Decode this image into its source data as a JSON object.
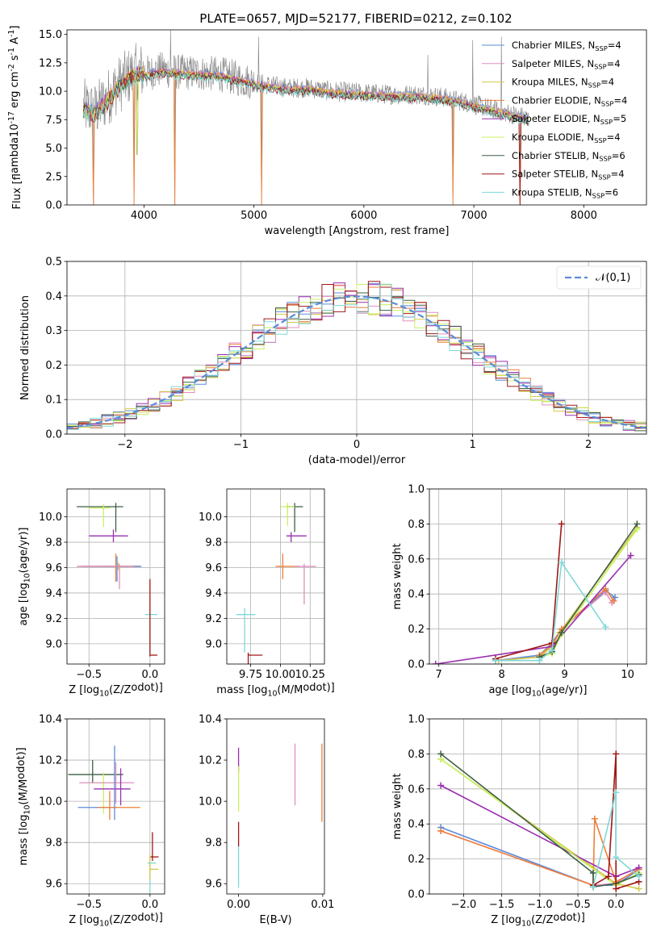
{
  "chart_data": [
    {
      "panel": "spectrum",
      "type": "line",
      "title": "PLATE=0657, MJD=52177, FIBERID=0212, z=0.102",
      "xlabel": "wavelength [Angstrom, rest frame]",
      "ylabel": "Flux [f$_\\lambda$10$^{-17}$ erg cm$^{-2}$ s$^{-1}$ A$^{-1}$]",
      "xlim": [
        3300,
        8570
      ],
      "ylim": [
        0,
        15.4
      ],
      "xticks": [
        4000,
        5000,
        6000,
        7000,
        8000
      ],
      "yticks": [
        0.0,
        2.5,
        5.0,
        7.5,
        10.0,
        12.5,
        15.0
      ],
      "grid": false,
      "legend": "top-right",
      "models": [
        {
          "name": "Chabrier MILES, N$_{SSP}$=4",
          "color": "#5b8bd9"
        },
        {
          "name": "Salpeter MILES, N$_{SSP}$=4",
          "color": "#e08fc0"
        },
        {
          "name": "Kroupa MILES, N$_{SSP}$=4",
          "color": "#d4c94a"
        },
        {
          "name": "Chabrier ELODIE, N$_{SSP}$=4",
          "color": "#ee7f3a"
        },
        {
          "name": "Salpeter ELODIE, N$_{SSP}$=5",
          "color": "#9a2fb0"
        },
        {
          "name": "Kroupa ELODIE, N$_{SSP}$=4",
          "color": "#c8f060"
        },
        {
          "name": "Chabrier STELIB, N$_{SSP}$=6",
          "color": "#3f5f45"
        },
        {
          "name": "Salpeter STELIB, N$_{SSP}$=4",
          "color": "#a01818"
        },
        {
          "name": "Kroupa STELIB, N$_{SSP}$=6",
          "color": "#7fd8d8"
        }
      ],
      "data_color": "#808080",
      "continuum": {
        "x": [
          3450,
          3550,
          3650,
          3750,
          3850,
          3950,
          4050,
          4150,
          4300,
          4500,
          4700,
          4900,
          5100,
          5300,
          5500,
          5700,
          5900,
          6100,
          6300,
          6500,
          6700,
          6900,
          7100,
          7300,
          7500
        ],
        "y": [
          8.6,
          8.2,
          9.2,
          10.4,
          11.2,
          11.8,
          11.6,
          11.9,
          11.7,
          11.6,
          11.5,
          11.0,
          10.6,
          10.3,
          10.3,
          10.0,
          9.9,
          9.8,
          9.7,
          9.7,
          9.5,
          9.1,
          8.6,
          8.1,
          7.6
        ]
      },
      "drops": [
        {
          "x": 3540,
          "y": 0.0
        },
        {
          "x": 3910,
          "y": 0.0
        },
        {
          "x": 3935,
          "y": 4.4
        },
        {
          "x": 4280,
          "y": 0.0
        },
        {
          "x": 5070,
          "y": 0.0
        },
        {
          "x": 6810,
          "y": 0.0
        },
        {
          "x": 7420,
          "y": 0.0
        }
      ],
      "spikes": [
        {
          "x": 4240,
          "y": 15.4
        },
        {
          "x": 5040,
          "y": 14.8
        },
        {
          "x": 6580,
          "y": 13.2
        },
        {
          "x": 6990,
          "y": 14.5
        },
        {
          "x": 7250,
          "y": 14.8
        }
      ]
    },
    {
      "panel": "residuals",
      "type": "histogram",
      "xlabel": "(data-model)/error",
      "ylabel": "Normed distribution",
      "xlim": [
        -2.5,
        2.5
      ],
      "ylim": [
        0,
        0.5
      ],
      "xticks": [
        -2,
        -1,
        0,
        1,
        2
      ],
      "yticks": [
        0.0,
        0.1,
        0.2,
        0.3,
        0.4,
        0.5
      ],
      "grid": true,
      "legend": "top-right",
      "reference": {
        "name": "$\\mathcal{N}(0,1)$",
        "color": "#5b8bd9",
        "dashed": true
      }
    },
    {
      "panel": "age_vs_Z",
      "type": "scatter",
      "xlabel": "Z [log$_{10}$(Z/Z$_\\odot$)]",
      "ylabel": "age  [log$_{10}$(age/yr)]",
      "xlim": [
        -0.68,
        0.12
      ],
      "ylim": [
        8.84,
        10.22
      ],
      "xticks": [
        -0.5,
        0.0
      ],
      "yticks": [
        9.0,
        9.2,
        9.4,
        9.6,
        9.8,
        10.0
      ],
      "grid": true,
      "points": [
        {
          "model": 6,
          "x": -0.28,
          "y": 10.08,
          "ex": [
            0.32,
            0.06
          ],
          "ey": [
            0.2,
            0.03
          ]
        },
        {
          "model": 5,
          "x": -0.38,
          "y": 10.07,
          "ex": [
            0.12,
            0.05
          ],
          "ey": [
            0.15,
            0.03
          ]
        },
        {
          "model": 4,
          "x": -0.3,
          "y": 9.85,
          "ex": [
            0.2,
            0.12
          ],
          "ey": [
            0.05,
            0.05
          ]
        },
        {
          "model": 2,
          "x": -0.26,
          "y": 9.61,
          "ex": [
            0.12,
            0.15
          ],
          "ey": [
            0.03,
            0.03
          ]
        },
        {
          "model": 3,
          "x": -0.28,
          "y": 9.61,
          "ex": [
            0.3,
            0.2
          ],
          "ey": [
            0.12,
            0.1
          ]
        },
        {
          "model": 0,
          "x": -0.27,
          "y": 9.61,
          "ex": [
            0.28,
            0.2
          ],
          "ey": [
            0.12,
            0.08
          ]
        },
        {
          "model": 1,
          "x": -0.25,
          "y": 9.61,
          "ex": [
            0.35,
            0.12
          ],
          "ey": [
            0.18,
            0.02
          ]
        },
        {
          "model": 8,
          "x": 0.0,
          "y": 9.23,
          "ex": [
            0.04,
            0.06
          ],
          "ey": [
            0.3,
            0.05
          ]
        },
        {
          "model": 7,
          "x": 0.0,
          "y": 8.91,
          "ex": [
            0.0,
            0.06
          ],
          "ey": [
            0.01,
            0.6
          ]
        }
      ]
    },
    {
      "panel": "age_vs_mass",
      "type": "scatter",
      "xlabel": "mass [log$_{10}$(M/M$_\\odot$)]",
      "ylabel": "",
      "xlim": [
        9.55,
        10.37
      ],
      "ylim": [
        8.84,
        10.22
      ],
      "xticks": [
        9.75,
        10.0,
        10.25
      ],
      "xticklabels": [
        "9.75",
        "10.00",
        "10.25"
      ],
      "yticks": [
        9.0,
        9.2,
        9.4,
        9.6,
        9.8,
        10.0
      ],
      "grid": true,
      "points": [
        {
          "model": 6,
          "x": 10.12,
          "y": 10.08,
          "ex": [
            0.07,
            0.07
          ],
          "ey": [
            0.2,
            0.03
          ]
        },
        {
          "model": 5,
          "x": 10.06,
          "y": 10.08,
          "ex": [
            0.06,
            0.06
          ],
          "ey": [
            0.15,
            0.03
          ]
        },
        {
          "model": 4,
          "x": 10.09,
          "y": 9.85,
          "ex": [
            0.04,
            0.13
          ],
          "ey": [
            0.05,
            0.03
          ]
        },
        {
          "model": 3,
          "x": 10.02,
          "y": 9.61,
          "ex": [
            0.06,
            0.14
          ],
          "ey": [
            0.1,
            0.1
          ]
        },
        {
          "model": 1,
          "x": 10.2,
          "y": 9.61,
          "ex": [
            0.07,
            0.1
          ],
          "ey": [
            0.3,
            0.02
          ]
        },
        {
          "model": 8,
          "x": 9.7,
          "y": 9.23,
          "ex": [
            0.07,
            0.09
          ],
          "ey": [
            0.3,
            0.05
          ]
        },
        {
          "model": 7,
          "x": 9.73,
          "y": 8.91,
          "ex": [
            0.0,
            0.12
          ],
          "ey": [
            0.6,
            0.02
          ]
        }
      ]
    },
    {
      "panel": "massweight_vs_age",
      "type": "line",
      "xlabel": "age  [log$_{10}$(age/yr)]",
      "ylabel": "mass weight",
      "xlim": [
        6.85,
        10.3
      ],
      "ylim": [
        0,
        1
      ],
      "xticks": [
        7,
        8,
        9,
        10
      ],
      "yticks": [
        0.0,
        0.2,
        0.4,
        0.6,
        0.8,
        1.0
      ],
      "grid": true,
      "series": [
        {
          "model": 0,
          "x": [
            7.9,
            8.6,
            8.8,
            8.95,
            9.65,
            9.8
          ],
          "y": [
            0.02,
            0.05,
            0.12,
            0.2,
            0.42,
            0.38
          ]
        },
        {
          "model": 1,
          "x": [
            7.9,
            8.6,
            8.8,
            8.95,
            9.65,
            9.75
          ],
          "y": [
            0.02,
            0.04,
            0.1,
            0.2,
            0.41,
            0.35
          ]
        },
        {
          "model": 2,
          "x": [
            7.95,
            8.6,
            8.8,
            8.92,
            10.15
          ],
          "y": [
            0.02,
            0.04,
            0.1,
            0.18,
            0.78
          ]
        },
        {
          "model": 3,
          "x": [
            8.6,
            8.8,
            8.95,
            9.65,
            9.78
          ],
          "y": [
            0.05,
            0.11,
            0.2,
            0.43,
            0.36
          ]
        },
        {
          "model": 4,
          "x": [
            6.95,
            8.8,
            10.05
          ],
          "y": [
            0.0,
            0.1,
            0.62
          ]
        },
        {
          "model": 5,
          "x": [
            8.6,
            8.8,
            8.95,
            10.15
          ],
          "y": [
            0.04,
            0.06,
            0.17,
            0.77
          ]
        },
        {
          "model": 6,
          "x": [
            8.6,
            8.8,
            8.95,
            10.15
          ],
          "y": [
            0.04,
            0.07,
            0.18,
            0.8
          ]
        },
        {
          "model": 7,
          "x": [
            7.9,
            8.8,
            8.95
          ],
          "y": [
            0.03,
            0.12,
            0.8
          ]
        },
        {
          "model": 8,
          "x": [
            7.9,
            8.6,
            8.8,
            8.95,
            9.65
          ],
          "y": [
            0.02,
            0.02,
            0.08,
            0.58,
            0.21
          ]
        }
      ]
    },
    {
      "panel": "mass_vs_Z",
      "type": "scatter",
      "xlabel": "Z [log$_{10}$(Z/Z$_\\odot$)]",
      "ylabel": "mass [log$_{10}$(M/M$_\\odot$)]",
      "xlim": [
        -0.68,
        0.12
      ],
      "ylim": [
        9.55,
        10.4
      ],
      "xticks": [
        -0.5,
        0.0
      ],
      "yticks": [
        9.6,
        9.8,
        10.0,
        10.2,
        10.4
      ],
      "grid": true,
      "points": [
        {
          "model": 6,
          "x": -0.47,
          "y": 10.13,
          "ex": [
            0.2,
            0.25
          ],
          "ey": [
            0.04,
            0.07
          ]
        },
        {
          "model": 5,
          "x": -0.38,
          "y": 10.09,
          "ex": [
            0.15,
            0.13
          ],
          "ey": [
            0.15,
            0.05
          ]
        },
        {
          "model": 1,
          "x": -0.28,
          "y": 10.09,
          "ex": [
            0.3,
            0.15
          ],
          "ey": [
            0.1,
            0.1
          ]
        },
        {
          "model": 4,
          "x": -0.24,
          "y": 10.06,
          "ex": [
            0.22,
            0.08
          ],
          "ey": [
            0.08,
            0.1
          ]
        },
        {
          "model": 0,
          "x": -0.29,
          "y": 9.97,
          "ex": [
            0.3,
            0.02
          ],
          "ey": [
            0.06,
            0.3
          ]
        },
        {
          "model": 3,
          "x": -0.33,
          "y": 9.97,
          "ex": [
            0.1,
            0.25
          ],
          "ey": [
            0.06,
            0.08
          ]
        },
        {
          "model": 8,
          "x": 0.0,
          "y": 9.7,
          "ex": [
            0.02,
            0.05
          ],
          "ey": [
            0.14,
            0.03
          ]
        },
        {
          "model": 7,
          "x": 0.02,
          "y": 9.73,
          "ex": [
            0.02,
            0.05
          ],
          "ey": [
            0.02,
            0.12
          ]
        },
        {
          "model": 2,
          "x": 0.0,
          "y": 9.67,
          "ex": [
            0.0,
            0.07
          ],
          "ey": [
            0.05,
            0.07
          ]
        }
      ]
    },
    {
      "panel": "mass_vs_EBV",
      "type": "scatter",
      "xlabel": "E(B-V)",
      "ylabel": "",
      "xlim": [
        -0.0014,
        0.0102
      ],
      "ylim": [
        9.55,
        10.4
      ],
      "xticks": [
        0.0,
        0.01
      ],
      "xticklabels": [
        "0.00",
        "0.01"
      ],
      "yticks": [
        9.6,
        9.8,
        10.0,
        10.2,
        10.4
      ],
      "grid": false,
      "points": [
        {
          "model": 4,
          "x": 0.0,
          "y": 10.2,
          "ex": [
            0,
            0
          ],
          "ey": [
            0.06,
            0.06
          ]
        },
        {
          "model": 5,
          "x": 0.0,
          "y": 10.05,
          "ex": [
            0,
            0
          ],
          "ey": [
            0.1,
            0.12
          ]
        },
        {
          "model": 7,
          "x": 0.0,
          "y": 9.84,
          "ex": [
            0,
            0
          ],
          "ey": [
            0.06,
            0.06
          ]
        },
        {
          "model": 8,
          "x": 0.0,
          "y": 9.68,
          "ex": [
            0,
            0
          ],
          "ey": [
            0.1,
            0.1
          ]
        },
        {
          "model": 1,
          "x": 0.0067,
          "y": 10.13,
          "ex": [
            0,
            0
          ],
          "ey": [
            0.15,
            0.15
          ]
        },
        {
          "model": 3,
          "x": 0.0099,
          "y": 10.1,
          "ex": [
            0,
            0
          ],
          "ey": [
            0.2,
            0.18
          ]
        }
      ]
    },
    {
      "panel": "massweight_vs_Z",
      "type": "line",
      "xlabel": "Z [log$_{10}$(Z/Z$_\\odot$)]",
      "ylabel": "mass weight",
      "xlim": [
        -2.45,
        0.4
      ],
      "ylim": [
        0,
        1
      ],
      "xticks": [
        -2.0,
        -1.5,
        -1.0,
        -0.5,
        0.0
      ],
      "yticks": [
        0.0,
        0.2,
        0.4,
        0.6,
        0.8,
        1.0
      ],
      "grid": true,
      "series": [
        {
          "model": 0,
          "x": [
            -2.3,
            -0.3,
            0.0,
            0.3
          ],
          "y": [
            0.38,
            0.05,
            0.05,
            0.14
          ]
        },
        {
          "model": 1,
          "x": [
            -2.3,
            -0.3,
            0.0,
            0.3
          ],
          "y": [
            0.36,
            0.05,
            0.06,
            0.15
          ]
        },
        {
          "model": 2,
          "x": [
            -2.3,
            0.0,
            0.3
          ],
          "y": [
            0.77,
            0.06,
            0.03
          ]
        },
        {
          "model": 3,
          "x": [
            -2.3,
            -0.3,
            -0.28,
            0.0,
            0.3
          ],
          "y": [
            0.36,
            0.05,
            0.43,
            0.07,
            0.14
          ]
        },
        {
          "model": 4,
          "x": [
            -2.3,
            0.0,
            0.3
          ],
          "y": [
            0.62,
            0.1,
            0.15
          ]
        },
        {
          "model": 5,
          "x": [
            -2.3,
            0.0,
            0.3
          ],
          "y": [
            0.77,
            0.05,
            0.12
          ]
        },
        {
          "model": 6,
          "x": [
            -2.3,
            -0.3,
            -0.3,
            0.0,
            0.3
          ],
          "y": [
            0.8,
            0.12,
            0.04,
            0.06,
            0.11
          ]
        },
        {
          "model": 7,
          "x": [
            -0.3,
            -0.1,
            0.0,
            0.0,
            0.3
          ],
          "y": [
            0.05,
            0.1,
            0.8,
            0.03,
            0.07
          ]
        },
        {
          "model": 8,
          "x": [
            -0.3,
            0.0,
            0.0,
            0.3
          ],
          "y": [
            0.04,
            0.58,
            0.21,
            0.1
          ]
        }
      ]
    }
  ]
}
